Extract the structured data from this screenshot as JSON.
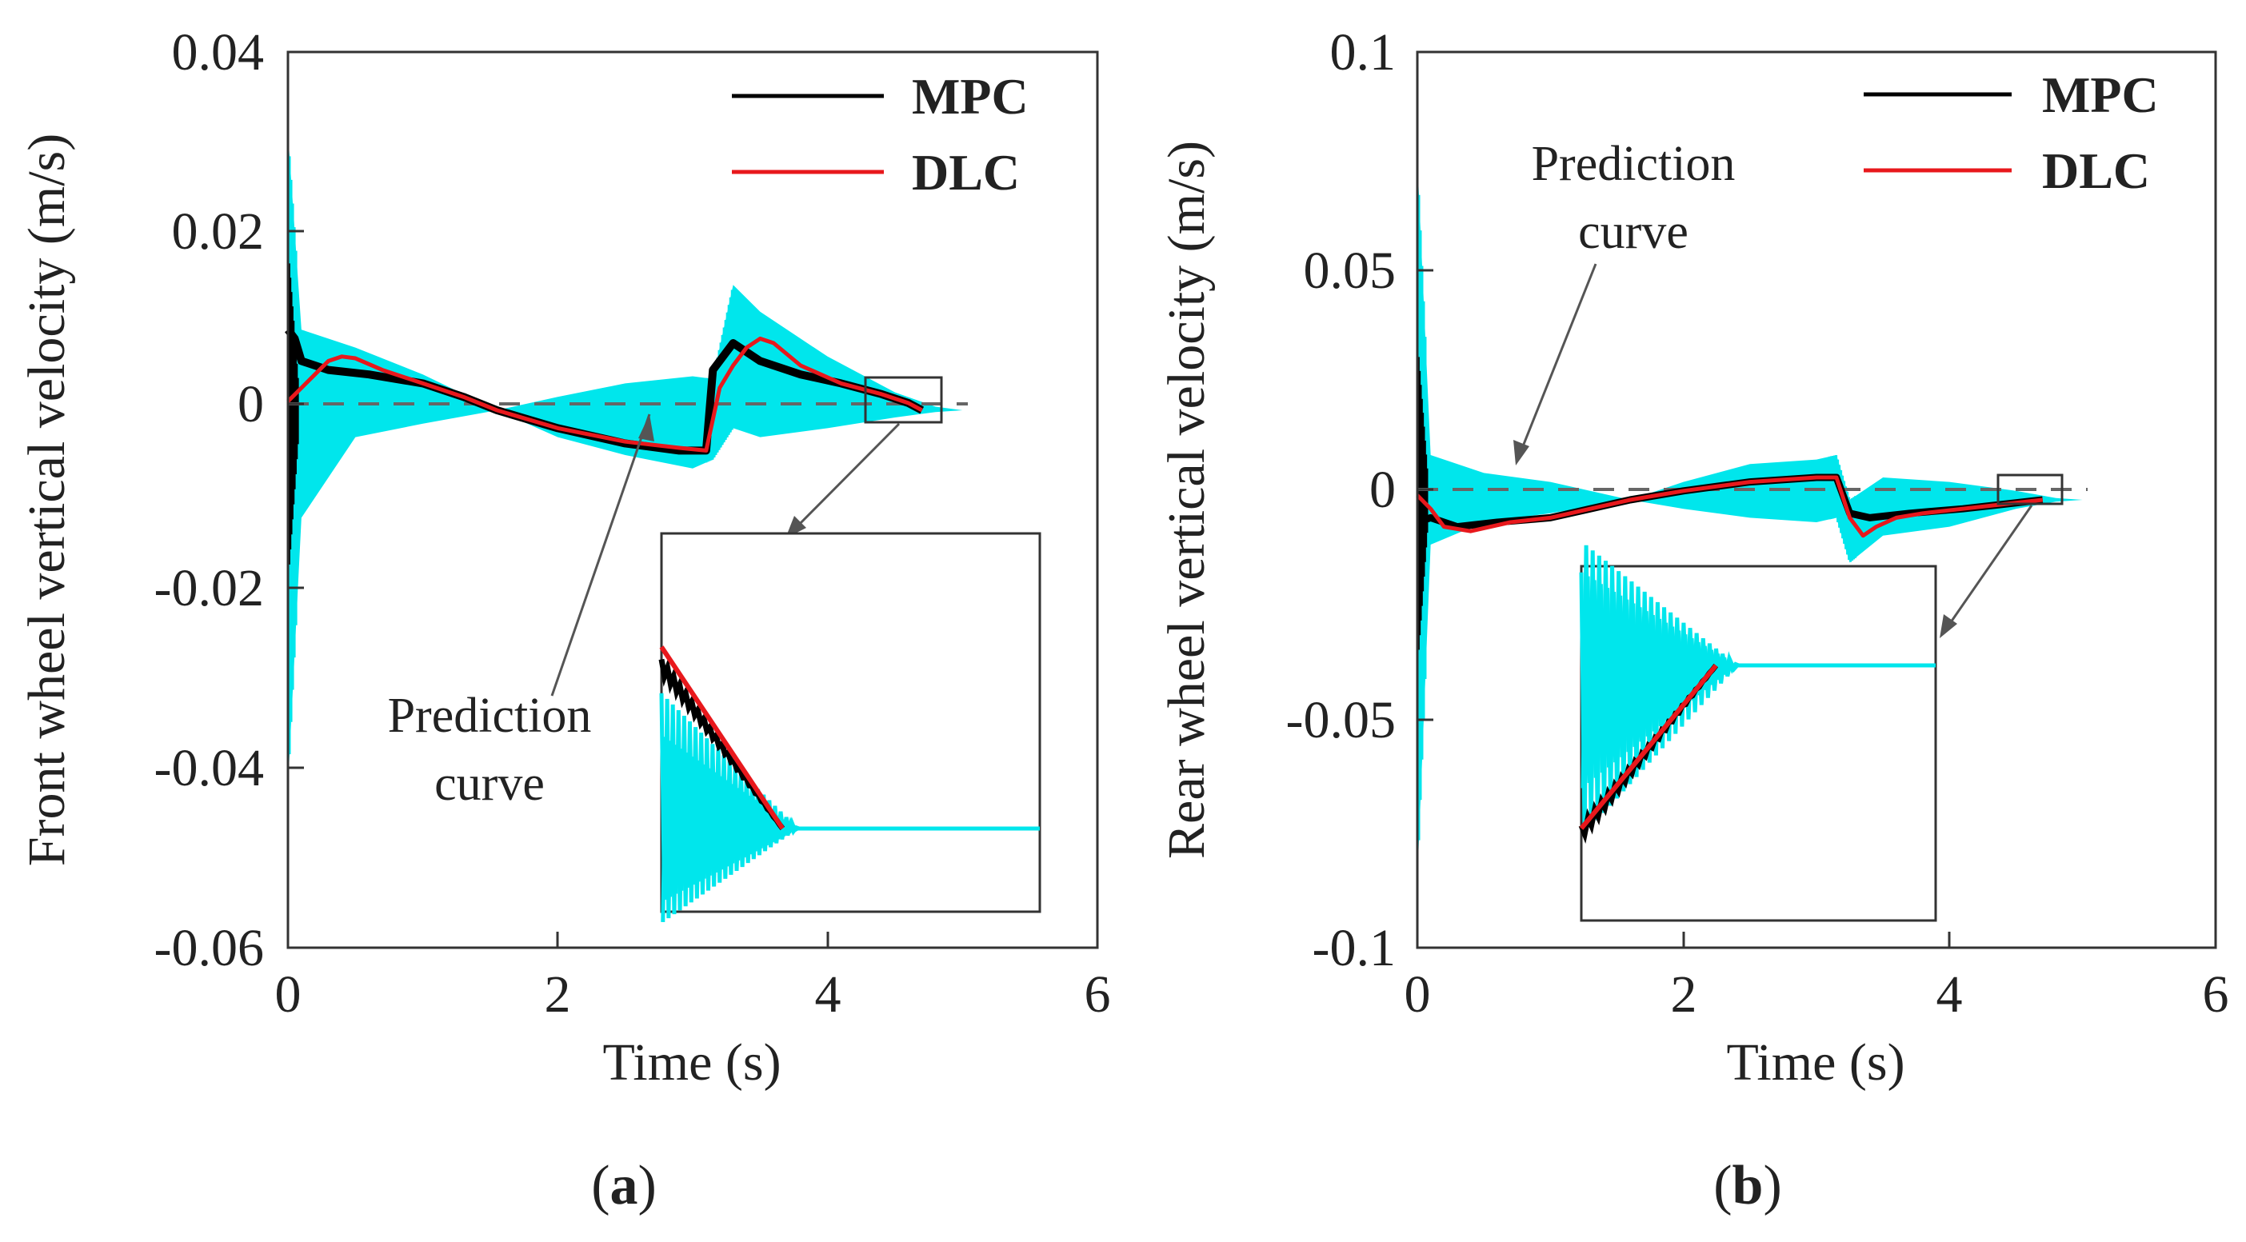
{
  "colors": {
    "mpc": "#000000",
    "dlc": "#e8181c",
    "prediction": "#00e6ec",
    "reference": "#555555",
    "axis": "#333333"
  },
  "chart_data": [
    {
      "type": "line",
      "panel_label": {
        "open": "(",
        "letter": "a",
        "close": ")"
      },
      "xlabel": "Time (s)",
      "ylabel": "Front wheel vertical velocity (m/s)",
      "xlim": [
        0,
        6
      ],
      "ylim": [
        -0.06,
        0.04
      ],
      "xticks": [
        "0",
        "2",
        "4",
        "6"
      ],
      "yticks": [
        "0.04",
        "0.02",
        "0",
        "-0.02",
        "-0.04",
        "-0.06"
      ],
      "legend": {
        "position": "top-right",
        "entries": [
          "MPC",
          "DLC"
        ]
      },
      "annotation": [
        "Prediction",
        "curve"
      ],
      "series": [
        {
          "name": "MPC",
          "x": [
            0,
            0.05,
            0.1,
            0.3,
            0.6,
            1.0,
            1.3,
            1.55,
            2.0,
            2.5,
            2.9,
            3.1,
            3.15,
            3.3,
            3.5,
            3.8,
            4.1,
            4.4,
            4.6,
            4.7
          ],
          "y": [
            0.009,
            0.008,
            0.0055,
            0.0045,
            0.004,
            0.003,
            0.0015,
            0.0,
            -0.002,
            -0.0037,
            -0.0045,
            -0.0045,
            0.0045,
            0.0075,
            0.0055,
            0.004,
            0.003,
            0.0018,
            0.0008,
            0.0
          ]
        },
        {
          "name": "DLC",
          "x": [
            0,
            0.1,
            0.2,
            0.3,
            0.4,
            0.5,
            0.7,
            1.0,
            1.3,
            1.55,
            2.0,
            2.5,
            2.9,
            3.1,
            3.2,
            3.3,
            3.4,
            3.5,
            3.6,
            3.8,
            4.1,
            4.4,
            4.6,
            4.7
          ],
          "y": [
            0.001,
            0.0025,
            0.004,
            0.0055,
            0.006,
            0.0058,
            0.0045,
            0.003,
            0.0015,
            0.0,
            -0.002,
            -0.0035,
            -0.0042,
            -0.0045,
            0.0025,
            0.005,
            0.007,
            0.008,
            0.0075,
            0.005,
            0.003,
            0.0018,
            0.0008,
            0.0
          ]
        },
        {
          "name": "Prediction curve",
          "x": [
            0,
            0.1,
            0.5,
            1.0,
            1.55,
            2.0,
            2.5,
            3.0,
            3.15,
            3.3,
            3.5,
            4.0,
            4.5,
            4.8,
            5.0
          ],
          "envelope_upper": [
            0.031,
            0.009,
            0.007,
            0.004,
            0.0,
            0.0015,
            0.003,
            0.0038,
            0.0035,
            0.014,
            0.011,
            0.006,
            0.002,
            0.0004,
            0.0
          ],
          "envelope_lower": [
            -0.042,
            -0.012,
            -0.003,
            -0.0015,
            0.0,
            -0.003,
            -0.005,
            -0.0065,
            -0.0055,
            -0.002,
            -0.003,
            -0.002,
            -0.0008,
            -0.0002,
            0.0
          ]
        }
      ]
    },
    {
      "type": "line",
      "panel_label": {
        "open": "(",
        "letter": "b",
        "close": ")"
      },
      "xlabel": "Time (s)",
      "ylabel": "Rear wheel vertical velocity (m/s)",
      "xlim": [
        0,
        6
      ],
      "ylim": [
        -0.1,
        0.1
      ],
      "xticks": [
        "0",
        "2",
        "4",
        "6"
      ],
      "yticks": [
        "0.1",
        "0.05",
        "0",
        "-0.05",
        "-0.1"
      ],
      "legend": {
        "position": "top-right",
        "entries": [
          "MPC",
          "DLC"
        ]
      },
      "annotation": [
        "Prediction",
        "curve"
      ],
      "series": [
        {
          "name": "MPC",
          "x": [
            0,
            0.1,
            0.3,
            0.6,
            1.0,
            1.3,
            1.6,
            2.0,
            2.5,
            3.0,
            3.15,
            3.25,
            3.4,
            3.7,
            4.1,
            4.4,
            4.7
          ],
          "y": [
            -0.005,
            -0.004,
            -0.006,
            -0.005,
            -0.004,
            -0.002,
            0.0,
            0.002,
            0.004,
            0.005,
            0.005,
            -0.003,
            -0.004,
            -0.003,
            -0.002,
            -0.001,
            0.0
          ]
        },
        {
          "name": "DLC",
          "x": [
            0,
            0.1,
            0.2,
            0.4,
            0.7,
            1.0,
            1.3,
            1.6,
            2.0,
            2.5,
            3.0,
            3.15,
            3.25,
            3.35,
            3.45,
            3.6,
            3.8,
            4.1,
            4.4,
            4.7
          ],
          "y": [
            0.001,
            -0.002,
            -0.006,
            -0.007,
            -0.005,
            -0.004,
            -0.002,
            0.0,
            0.002,
            0.004,
            0.005,
            0.005,
            -0.004,
            -0.008,
            -0.006,
            -0.004,
            -0.003,
            -0.002,
            -0.001,
            0.0
          ]
        },
        {
          "name": "Prediction curve",
          "x": [
            0,
            0.1,
            0.5,
            1.0,
            1.6,
            2.0,
            2.5,
            3.0,
            3.15,
            3.25,
            3.5,
            4.0,
            4.5,
            4.8,
            5.0
          ],
          "envelope_upper": [
            0.076,
            0.01,
            0.006,
            0.004,
            0.0,
            0.004,
            0.008,
            0.009,
            0.01,
            0.0,
            0.005,
            0.004,
            0.002,
            0.0004,
            0.0
          ],
          "envelope_lower": [
            -0.085,
            -0.01,
            -0.005,
            -0.003,
            0.0,
            -0.002,
            -0.004,
            -0.005,
            -0.004,
            -0.014,
            -0.008,
            -0.006,
            -0.002,
            -0.0004,
            0.0
          ]
        }
      ]
    }
  ]
}
